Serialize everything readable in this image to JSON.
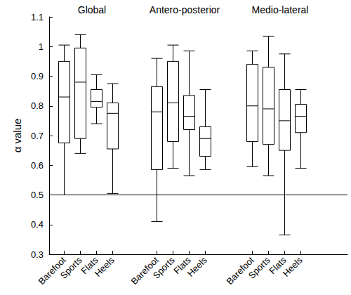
{
  "chart_data": {
    "type": "boxplot",
    "ylabel": "α value",
    "ylim": [
      0.3,
      1.1
    ],
    "yticks": [
      0.3,
      0.4,
      0.5,
      0.6,
      0.7,
      0.8,
      0.9,
      1,
      1.1
    ],
    "grid": false,
    "hline": 0.5,
    "groups": [
      {
        "title": "Global",
        "categories": [
          "Barefoot",
          "Sports",
          "Flats",
          "Heels"
        ],
        "values": [
          [
            0.5,
            0.675,
            0.83,
            0.95,
            1.005
          ],
          [
            0.64,
            0.69,
            0.88,
            0.995,
            1.04
          ],
          [
            0.74,
            0.795,
            0.815,
            0.855,
            0.905
          ],
          [
            0.505,
            0.655,
            0.775,
            0.81,
            0.875
          ]
        ]
      },
      {
        "title": "Antero-posterior",
        "categories": [
          "Barefoot",
          "Sports",
          "Flats",
          "Heels"
        ],
        "values": [
          [
            0.41,
            0.585,
            0.78,
            0.865,
            0.96
          ],
          [
            0.59,
            0.68,
            0.81,
            0.95,
            1.005
          ],
          [
            0.565,
            0.72,
            0.765,
            0.835,
            0.985
          ],
          [
            0.585,
            0.63,
            0.69,
            0.73,
            0.855
          ]
        ]
      },
      {
        "title": "Medio-lateral",
        "categories": [
          "Barefoot",
          "Sports",
          "Flats",
          "Heels"
        ],
        "values": [
          [
            0.595,
            0.68,
            0.8,
            0.94,
            0.985
          ],
          [
            0.565,
            0.67,
            0.79,
            0.93,
            1.035
          ],
          [
            0.365,
            0.65,
            0.75,
            0.855,
            0.975
          ],
          [
            0.59,
            0.71,
            0.765,
            0.805,
            0.855
          ]
        ]
      }
    ]
  }
}
